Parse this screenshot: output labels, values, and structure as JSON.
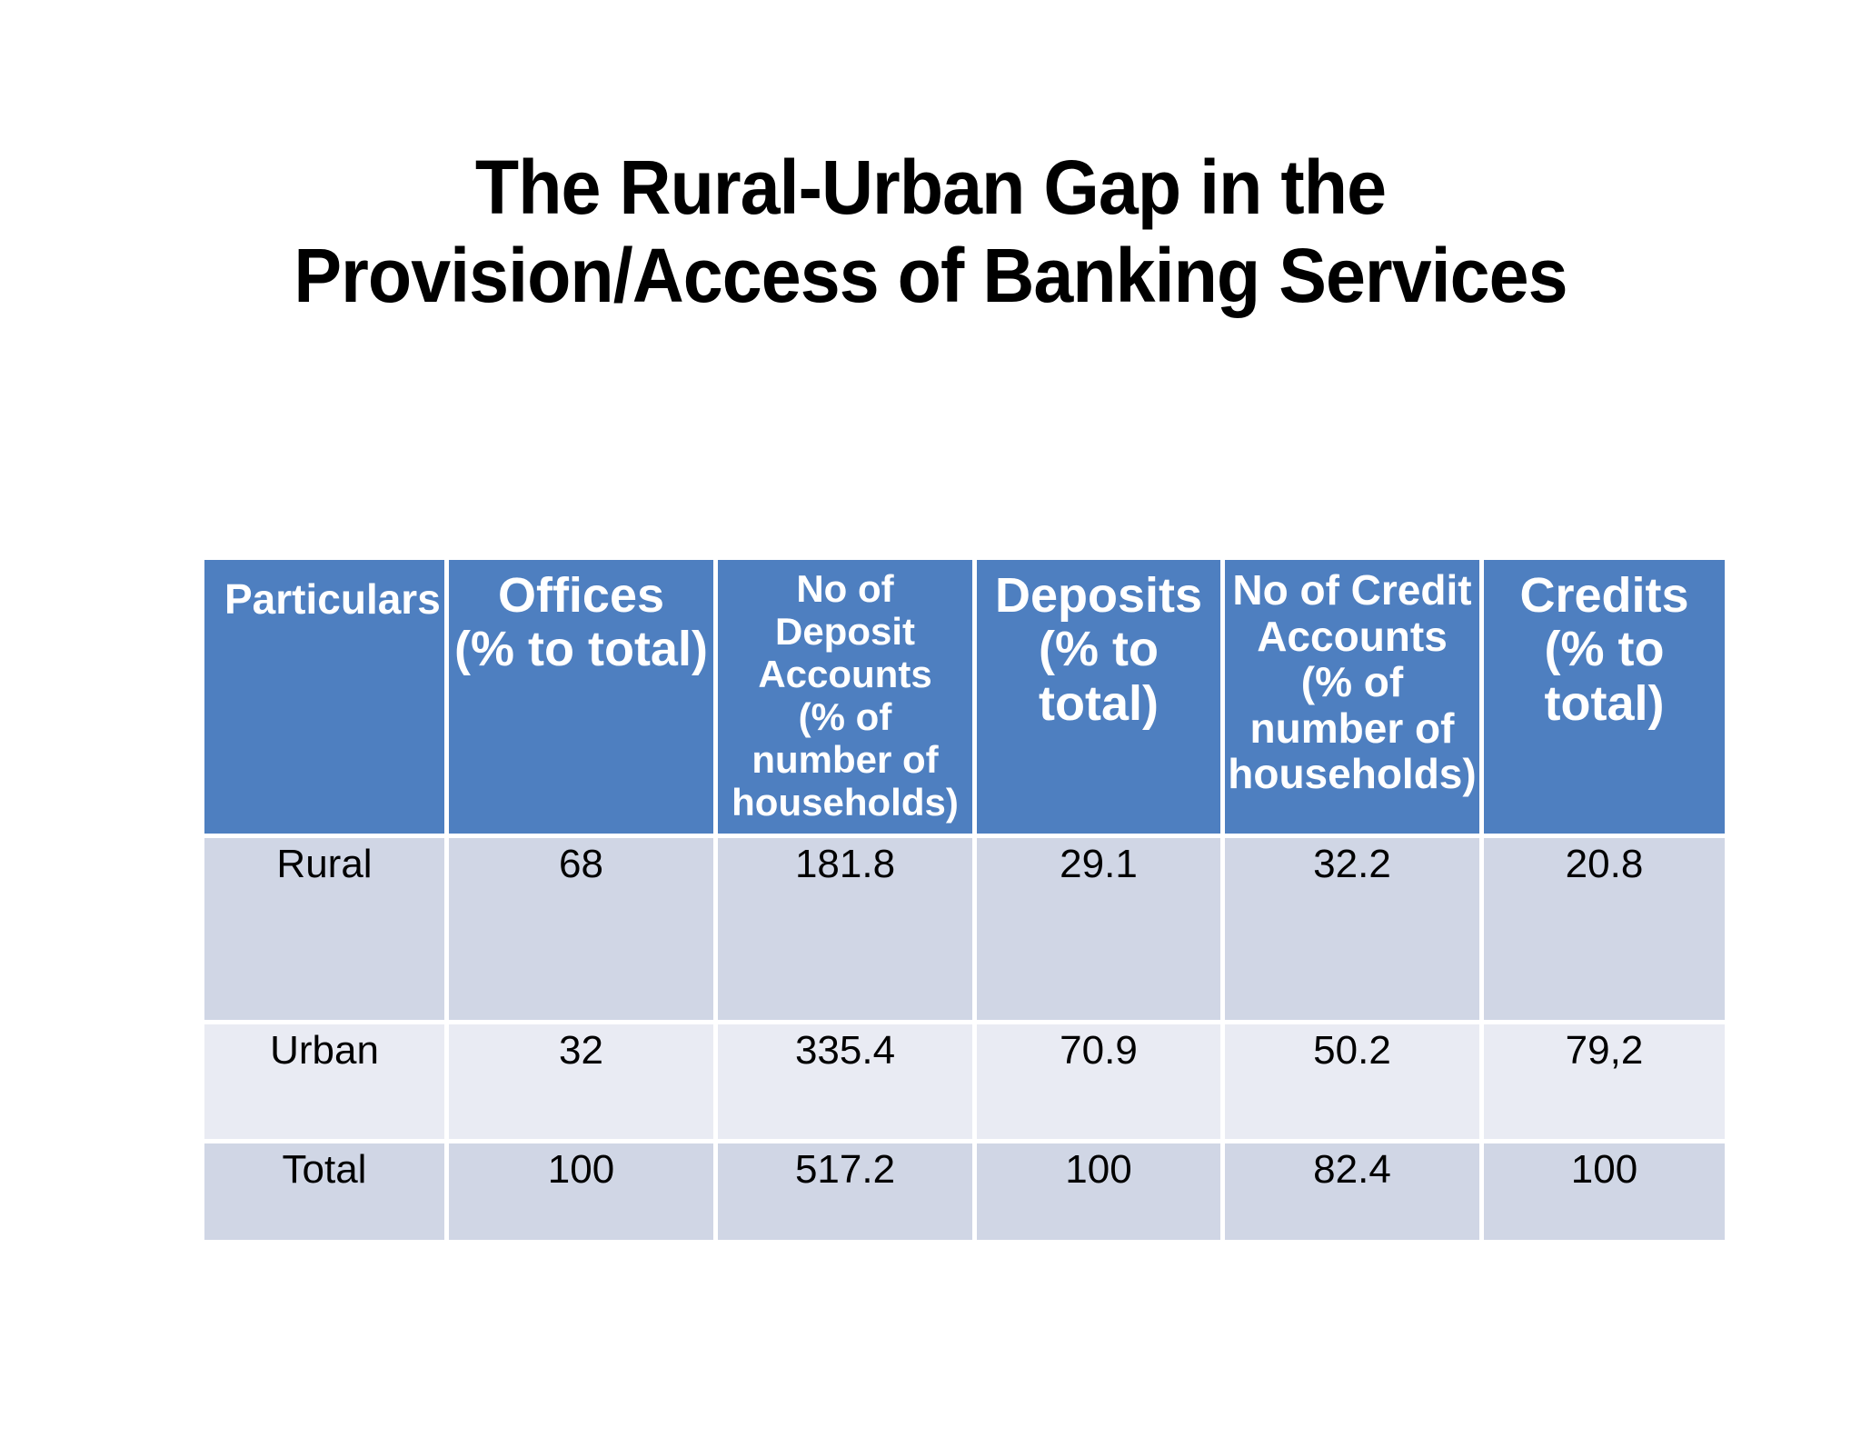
{
  "title": {
    "line1": "The Rural-Urban Gap in the",
    "line2": "Provision/Access of Banking Services"
  },
  "table": {
    "header": {
      "particulars": "Particulars",
      "offices": "Offices\n(% to total)",
      "deposit_accounts": "No of\nDeposit\nAccounts\n(% of\nnumber of\nhouseholds)",
      "deposits": "Deposits\n(% to total)",
      "credit_accounts": "No of Credit\nAccounts\n(% of\nnumber of\nhouseholds)",
      "credits": "Credits\n(% to total)"
    },
    "rows": [
      {
        "particulars": "Rural",
        "offices": "68",
        "deposit_accounts": "181.8",
        "deposits": "29.1",
        "credit_accounts": "32.2",
        "credits": "20.8"
      },
      {
        "particulars": "Urban",
        "offices": "32",
        "deposit_accounts": "335.4",
        "deposits": "70.9",
        "credit_accounts": "50.2",
        "credits": "79,2"
      },
      {
        "particulars": "Total",
        "offices": "100",
        "deposit_accounts": "517.2",
        "deposits": "100",
        "credit_accounts": "82.4",
        "credits": "100"
      }
    ]
  },
  "colors": {
    "header_bg": "#4e7fc0",
    "row_band_dark": "#d0d6e5",
    "row_band_light": "#e9ebf3",
    "separator": "#ffffff",
    "header_text": "#ffffff",
    "body_text": "#000000",
    "title_text": "#000000"
  },
  "chart_data": {
    "type": "table",
    "title": "The Rural-Urban Gap in the Provision/Access of Banking Services",
    "columns": [
      "Particulars",
      "Offices (% to total)",
      "No of Deposit Accounts (% of number of households)",
      "Deposits (% to total)",
      "No of Credit Accounts (% of number of households)",
      "Credits (% to total)"
    ],
    "rows": [
      [
        "Rural",
        "68",
        "181.8",
        "29.1",
        "32.2",
        "20.8"
      ],
      [
        "Urban",
        "32",
        "335.4",
        "70.9",
        "50.2",
        "79,2"
      ],
      [
        "Total",
        "100",
        "517.2",
        "100",
        "82.4",
        "100"
      ]
    ]
  }
}
